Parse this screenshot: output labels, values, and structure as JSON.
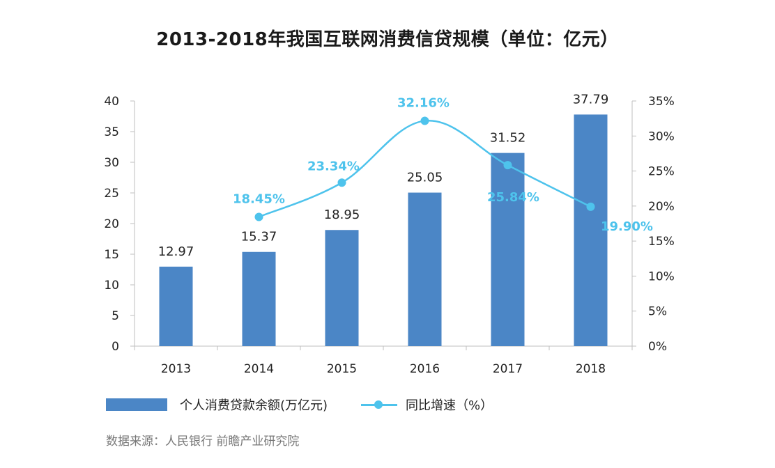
{
  "title": "2013-2018年我国互联网消费信贷规模（单位：亿元）",
  "source": "数据来源：人民银行  前瞻产业研究院",
  "colors": {
    "bar": "#4b86c6",
    "line": "#4ec3ec",
    "axis": "#bfbfbf",
    "label": "#222222"
  },
  "legend": {
    "bar_label": "个人消费贷款余额(万亿元)",
    "line_label": "同比增速（%）"
  },
  "chart_data": {
    "type": "bar",
    "categories": [
      "2013",
      "2014",
      "2015",
      "2016",
      "2017",
      "2018"
    ],
    "series": [
      {
        "name": "个人消费贷款余额(万亿元)",
        "type": "bar",
        "axis": "left",
        "values": [
          12.97,
          15.37,
          18.95,
          25.05,
          31.52,
          37.79
        ],
        "labels": [
          "12.97",
          "15.37",
          "18.95",
          "25.05",
          "31.52",
          "37.79"
        ]
      },
      {
        "name": "同比增速（%）",
        "type": "line",
        "axis": "right",
        "smooth": true,
        "x": [
          "2014",
          "2015",
          "2016",
          "2017",
          "2018"
        ],
        "values": [
          18.45,
          23.34,
          32.16,
          25.84,
          19.9
        ],
        "labels": [
          "18.45%",
          "23.34%",
          "32.16%",
          "25.84%",
          "19.90%"
        ]
      }
    ],
    "left_axis": {
      "ylim": [
        0,
        40
      ],
      "ticks": [
        "0",
        "5",
        "10",
        "15",
        "20",
        "25",
        "30",
        "35",
        "40"
      ]
    },
    "right_axis": {
      "ylim": [
        0,
        35
      ],
      "ticks": [
        "0%",
        "5%",
        "10%",
        "15%",
        "20%",
        "25%",
        "30%",
        "35%"
      ]
    },
    "grid": false,
    "legend_position": "bottom-left"
  }
}
